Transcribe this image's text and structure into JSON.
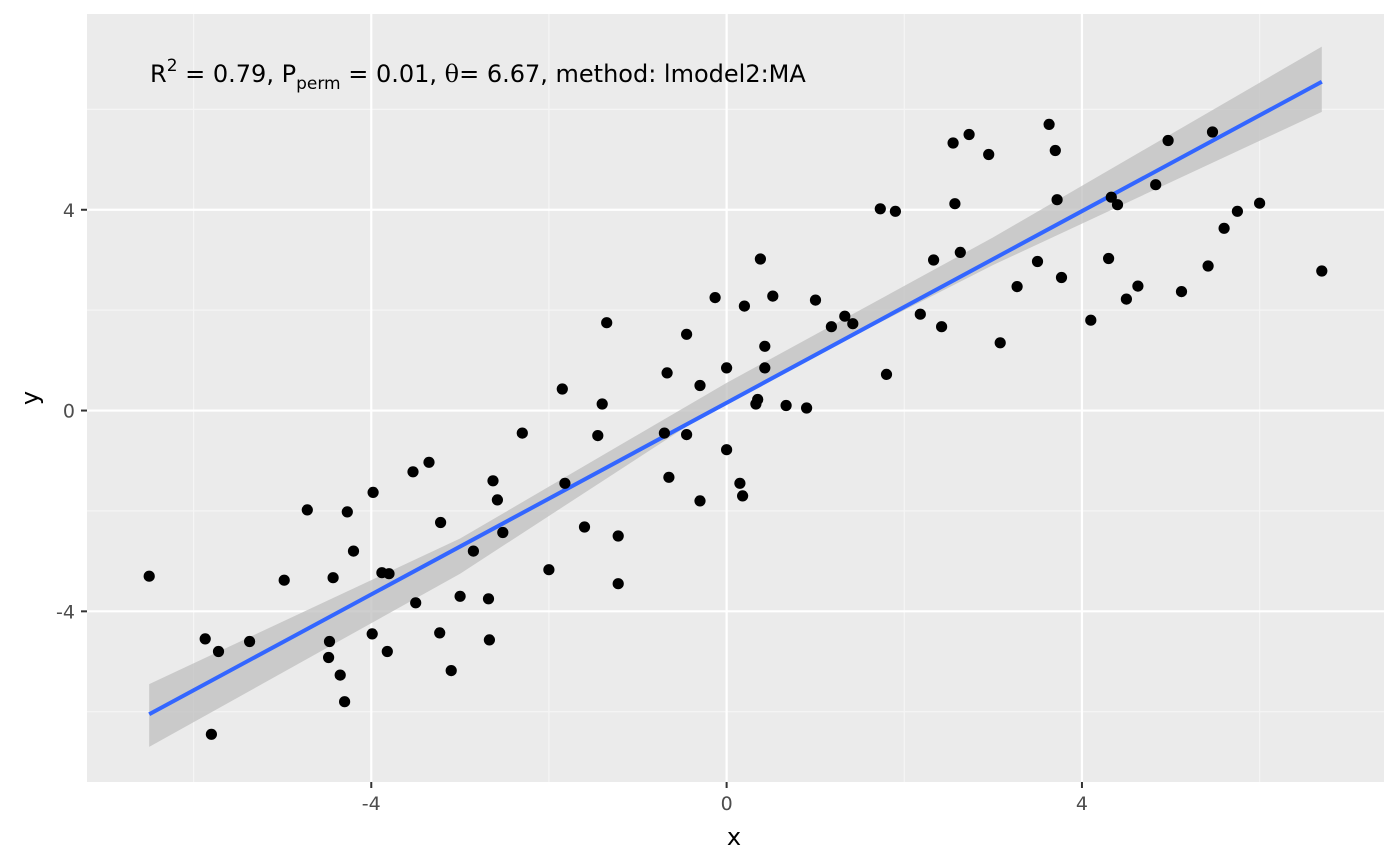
{
  "chart_data": {
    "type": "scatter",
    "annotation": {
      "r_label": "R",
      "r_sup": "2",
      "r_value": " = 0.79, ",
      "p_label": "P",
      "p_sub": "perm",
      "p_value": " = 0.01, ",
      "theta_label": "θ",
      "theta_value": "= 6.67, method: lmodel2:MA"
    },
    "xlabel": "x",
    "ylabel": "y",
    "xlim": [
      -7.2,
      7.4
    ],
    "ylim": [
      -7.4,
      7.9
    ],
    "x_ticks": [
      -4,
      0,
      4
    ],
    "x_tick_labels": [
      "-4",
      "0",
      "4"
    ],
    "y_ticks": [
      -4,
      0,
      4
    ],
    "y_tick_labels": [
      "-4",
      "0",
      "4"
    ],
    "x_minor": [
      -6,
      -2,
      2,
      6
    ],
    "y_minor": [
      -6,
      -2,
      2,
      6
    ],
    "grid": true,
    "colors": {
      "panel": "#ebebeb",
      "grid_major": "#ffffff",
      "grid_minor": "#f5f5f5",
      "points": "#000000",
      "line": "#3366ff",
      "ribbon": "#bfbfbf"
    },
    "line": {
      "x": [
        -6.5,
        6.7
      ],
      "y": [
        -6.05,
        6.55
      ]
    },
    "ribbon": {
      "x": [
        -6.5,
        -3.0,
        0.0,
        3.0,
        6.7
      ],
      "upper": [
        -5.45,
        -2.55,
        0.55,
        3.45,
        7.25
      ],
      "lower": [
        -6.7,
        -3.25,
        0.2,
        2.9,
        5.95
      ]
    },
    "points": [
      [
        -6.5,
        -3.3
      ],
      [
        -5.87,
        -4.55
      ],
      [
        -5.8,
        -6.45
      ],
      [
        -5.72,
        -4.8
      ],
      [
        -5.37,
        -4.6
      ],
      [
        -4.98,
        -3.38
      ],
      [
        -4.72,
        -1.98
      ],
      [
        -4.47,
        -4.6
      ],
      [
        -4.48,
        -4.92
      ],
      [
        -4.43,
        -3.33
      ],
      [
        -4.35,
        -5.27
      ],
      [
        -4.3,
        -5.8
      ],
      [
        -4.27,
        -2.02
      ],
      [
        -4.2,
        -2.8
      ],
      [
        -3.98,
        -1.63
      ],
      [
        -3.99,
        -4.45
      ],
      [
        -3.88,
        -3.23
      ],
      [
        -3.82,
        -4.8
      ],
      [
        -3.8,
        -3.25
      ],
      [
        -3.53,
        -1.22
      ],
      [
        -3.5,
        -3.83
      ],
      [
        -3.35,
        -1.03
      ],
      [
        -3.22,
        -2.23
      ],
      [
        -3.23,
        -4.43
      ],
      [
        -3.1,
        -5.18
      ],
      [
        -3.0,
        -3.7
      ],
      [
        -2.85,
        -2.8
      ],
      [
        -2.68,
        -3.75
      ],
      [
        -2.67,
        -4.57
      ],
      [
        -2.63,
        -1.4
      ],
      [
        -2.58,
        -1.78
      ],
      [
        -2.52,
        -2.43
      ],
      [
        -2.3,
        -0.45
      ],
      [
        -2.0,
        -3.17
      ],
      [
        -1.85,
        0.43
      ],
      [
        -1.82,
        -1.45
      ],
      [
        -1.6,
        -2.32
      ],
      [
        -1.45,
        -0.5
      ],
      [
        -1.4,
        0.13
      ],
      [
        -1.35,
        1.75
      ],
      [
        -1.22,
        -2.5
      ],
      [
        -1.22,
        -3.45
      ],
      [
        -0.7,
        -0.45
      ],
      [
        -0.67,
        0.75
      ],
      [
        -0.65,
        -1.33
      ],
      [
        -0.45,
        1.52
      ],
      [
        -0.45,
        -0.48
      ],
      [
        -0.3,
        0.5
      ],
      [
        -0.3,
        -1.8
      ],
      [
        -0.13,
        2.25
      ],
      [
        0.0,
        0.85
      ],
      [
        0.0,
        -0.78
      ],
      [
        0.15,
        -1.45
      ],
      [
        0.18,
        -1.7
      ],
      [
        0.2,
        2.08
      ],
      [
        0.33,
        0.13
      ],
      [
        0.35,
        0.22
      ],
      [
        0.38,
        3.02
      ],
      [
        0.43,
        1.28
      ],
      [
        0.43,
        0.85
      ],
      [
        0.52,
        2.28
      ],
      [
        0.67,
        0.1
      ],
      [
        0.9,
        0.05
      ],
      [
        1.0,
        2.2
      ],
      [
        1.18,
        1.67
      ],
      [
        1.33,
        1.88
      ],
      [
        1.42,
        1.73
      ],
      [
        1.73,
        4.02
      ],
      [
        1.8,
        0.72
      ],
      [
        1.9,
        3.97
      ],
      [
        2.18,
        1.92
      ],
      [
        2.33,
        3.0
      ],
      [
        2.42,
        1.67
      ],
      [
        2.55,
        5.33
      ],
      [
        2.57,
        4.12
      ],
      [
        2.63,
        3.15
      ],
      [
        2.73,
        5.5
      ],
      [
        2.95,
        5.1
      ],
      [
        3.08,
        1.35
      ],
      [
        3.27,
        2.47
      ],
      [
        3.5,
        2.97
      ],
      [
        3.63,
        5.7
      ],
      [
        3.7,
        5.18
      ],
      [
        3.72,
        4.2
      ],
      [
        3.77,
        2.65
      ],
      [
        4.1,
        1.8
      ],
      [
        4.3,
        3.03
      ],
      [
        4.33,
        4.25
      ],
      [
        4.4,
        4.1
      ],
      [
        4.5,
        2.22
      ],
      [
        4.63,
        2.48
      ],
      [
        4.83,
        4.5
      ],
      [
        4.97,
        5.38
      ],
      [
        5.12,
        2.37
      ],
      [
        5.42,
        2.88
      ],
      [
        5.47,
        5.55
      ],
      [
        5.6,
        3.63
      ],
      [
        5.75,
        3.97
      ],
      [
        6.0,
        4.13
      ],
      [
        6.7,
        2.78
      ]
    ]
  }
}
